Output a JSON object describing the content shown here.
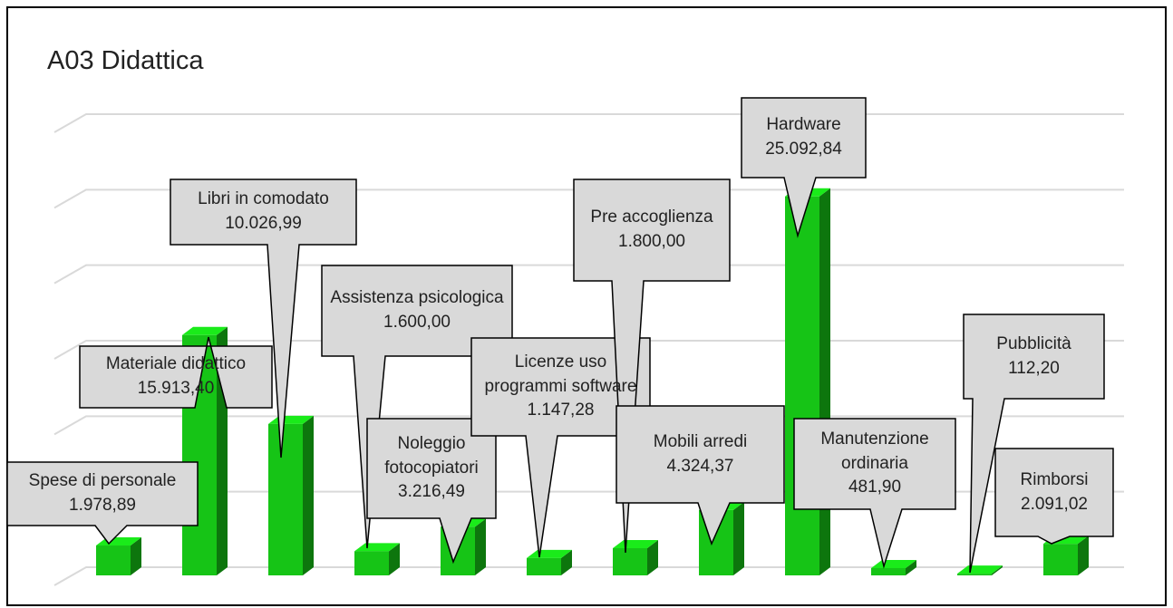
{
  "chart_data": {
    "type": "bar3d",
    "title": "A03  Didattica",
    "categories": [
      "Spese di personale",
      "Materiale didattico",
      "Libri in comodato",
      "Assistenza psicologica",
      "Noleggio fotocopiatori",
      "Licenze uso programmi software",
      "Pre accoglienza",
      "Mobili arredi",
      "Hardware",
      "Manutenzione ordinaria",
      "Pubblicità",
      "Rimborsi"
    ],
    "values": [
      1978.89,
      15913.4,
      10026.99,
      1600.0,
      3216.49,
      1147.28,
      1800.0,
      4324.37,
      25092.84,
      481.9,
      112.2,
      2091.02
    ],
    "value_labels": [
      "1.978,89",
      "15.913,40",
      "10.026,99",
      "1.600,00",
      "3.216,49",
      "1.147,28",
      "1.800,00",
      "4.324,37",
      "25.092,84",
      "481,90",
      "112,20",
      "2.091,02"
    ],
    "color": "#16c416",
    "ylim": [
      0,
      30000
    ],
    "yticks": [
      0,
      5000,
      10000,
      15000,
      20000,
      25000,
      30000
    ],
    "grid": true
  }
}
